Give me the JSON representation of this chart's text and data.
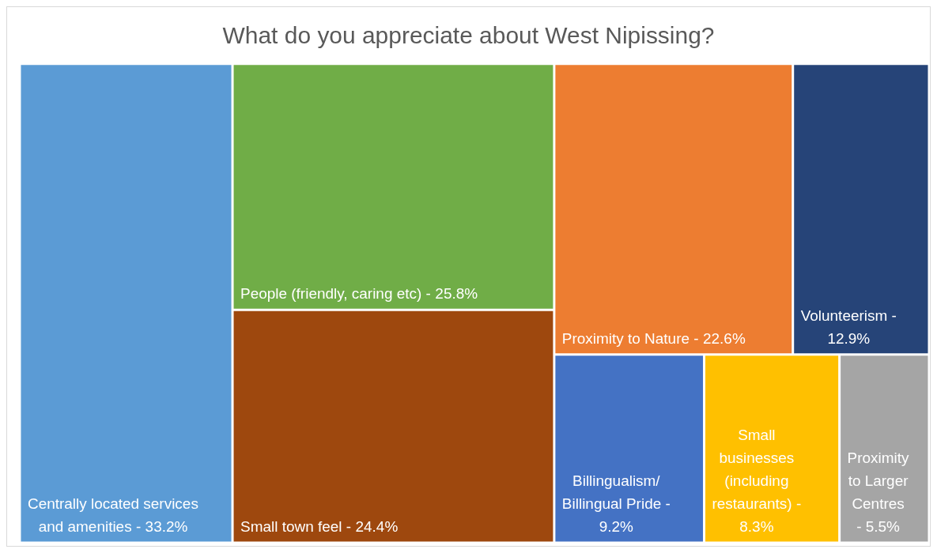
{
  "chart_data": {
    "type": "other",
    "title": "What do you appreciate about West Nipissing?",
    "categories": [
      "Centrally located services and amenities -",
      "People (friendly, caring etc) -",
      "Small town feel -",
      "Proximity to Nature -",
      "Volunteerism -",
      "Billingualism/ Billingual Pride -",
      "Small businesses (including restaurants) -",
      "Proximity to Larger Centres -"
    ],
    "values": [
      33.2,
      25.8,
      24.4,
      22.6,
      12.9,
      9.2,
      8.3,
      5.5
    ],
    "value_labels": [
      "33.2%",
      "25.8%",
      "24.4%",
      "22.6%",
      "12.9%",
      "9.2%",
      "8.3%",
      "5.5%"
    ],
    "colors": [
      "#5b9bd5",
      "#70ad47",
      "#9e480e",
      "#ed7d31",
      "#264478",
      "#4472c4",
      "#ffc000",
      "#a5a5a5"
    ]
  }
}
